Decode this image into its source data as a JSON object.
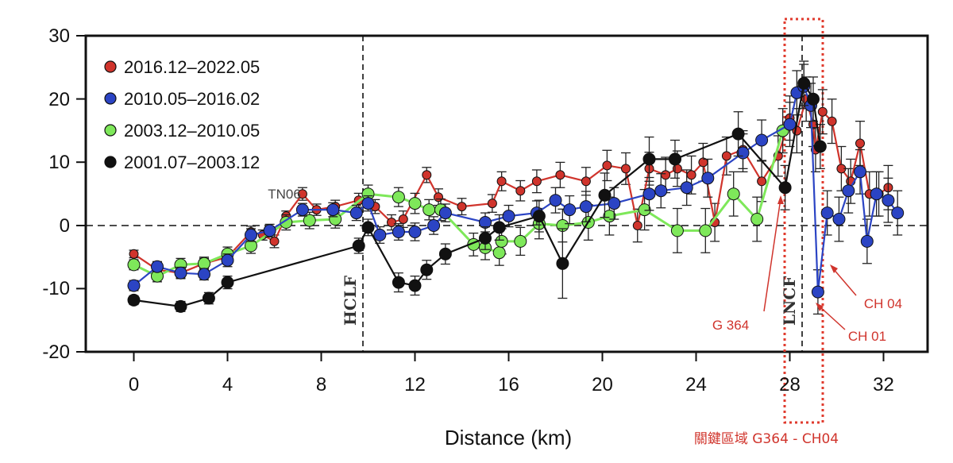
{
  "chart_data": {
    "type": "line",
    "xlabel": "Distance (km)",
    "ylabel": "",
    "xlim": [
      -1.5,
      34.5
    ],
    "ylim": [
      -20,
      30
    ],
    "xticks": [
      "0",
      "4",
      "8",
      "12",
      "16",
      "20",
      "24",
      "28",
      "32"
    ],
    "yticks": [
      "30",
      "20",
      "10",
      "0",
      "-10",
      "-20"
    ],
    "legend_position": "top-left",
    "series": [
      {
        "name": "2016.12–2022.05",
        "color": "#d0342c",
        "points": [
          [
            0,
            -4.5,
            0.6
          ],
          [
            1,
            -7.0,
            0.7
          ],
          [
            2,
            -7.5,
            0.8
          ],
          [
            3,
            -6.0,
            0.8
          ],
          [
            4,
            -5.0,
            0.9
          ],
          [
            5,
            -1.0,
            0.9
          ],
          [
            5.5,
            -1.5,
            0.8
          ],
          [
            6,
            -2.5,
            1.0
          ],
          [
            6.5,
            1.5,
            0.8
          ],
          [
            7.2,
            5.0,
            1.0
          ],
          [
            7.8,
            2.5,
            0.9
          ],
          [
            8.6,
            3.0,
            1.0
          ],
          [
            9.6,
            4.0,
            1.1
          ],
          [
            10.3,
            3.0,
            1.1
          ],
          [
            11,
            0.5,
            1.2
          ],
          [
            11.5,
            1.0,
            1.3
          ],
          [
            12.5,
            8.0,
            1.2
          ],
          [
            13,
            4.5,
            1.3
          ],
          [
            14,
            3.0,
            1.3
          ],
          [
            15.3,
            3.5,
            1.4
          ],
          [
            15.7,
            7.0,
            1.5
          ],
          [
            16.5,
            5.5,
            1.6
          ],
          [
            17.2,
            7.0,
            1.8
          ],
          [
            18.2,
            8.0,
            2.0
          ],
          [
            19.3,
            7.0,
            2.2
          ],
          [
            20.2,
            9.5,
            2.4
          ],
          [
            21,
            9.0,
            2.5
          ],
          [
            21.5,
            0.0,
            2.6
          ],
          [
            22,
            9.0,
            2.6
          ],
          [
            22.7,
            8.0,
            2.8
          ],
          [
            23.2,
            9.0,
            2.8
          ],
          [
            23.8,
            8.0,
            3.0
          ],
          [
            24.3,
            10.0,
            3.0
          ],
          [
            24.8,
            0.5,
            3.0
          ],
          [
            25.3,
            11.0,
            3.0
          ],
          [
            26,
            12.0,
            3.0
          ],
          [
            26.8,
            7.0,
            3.2
          ],
          [
            27.5,
            11.0,
            3.2
          ],
          [
            28,
            17.0,
            3.5
          ],
          [
            28.3,
            15.0,
            3.5
          ],
          [
            28.7,
            20.0,
            3.5
          ],
          [
            29,
            16.0,
            3.5
          ],
          [
            29.1,
            12.0,
            3.5
          ],
          [
            29.4,
            18.0,
            3.5
          ],
          [
            29.8,
            16.5,
            3.5
          ],
          [
            30.2,
            9.0,
            3.5
          ],
          [
            30.6,
            7.0,
            3.5
          ],
          [
            31,
            13.0,
            3.5
          ],
          [
            31.4,
            5.0,
            3.5
          ],
          [
            31.8,
            5.0,
            3.5
          ],
          [
            32.2,
            6.0,
            3.5
          ]
        ]
      },
      {
        "name": "2010.05–2016.02",
        "color": "#2b44c4",
        "points": [
          [
            0,
            -9.5,
            0.8
          ],
          [
            1,
            -6.5,
            0.8
          ],
          [
            2,
            -7.5,
            0.9
          ],
          [
            3,
            -7.7,
            0.9
          ],
          [
            4,
            -5.5,
            1.0
          ],
          [
            5,
            -1.5,
            1.0
          ],
          [
            5.8,
            -0.8,
            1.0
          ],
          [
            7.2,
            2.5,
            1.0
          ],
          [
            8.5,
            2.5,
            1.1
          ],
          [
            9.5,
            2.0,
            1.2
          ],
          [
            10,
            3.5,
            1.2
          ],
          [
            10.5,
            -1.5,
            1.3
          ],
          [
            11.3,
            -1.0,
            1.3
          ],
          [
            12,
            -1.0,
            1.4
          ],
          [
            12.8,
            0.0,
            1.4
          ],
          [
            13.3,
            2.0,
            1.4
          ],
          [
            15,
            0.5,
            1.5
          ],
          [
            16,
            1.5,
            1.7
          ],
          [
            17.2,
            2.0,
            1.9
          ],
          [
            18,
            4.0,
            2.0
          ],
          [
            18.6,
            2.5,
            2.2
          ],
          [
            19.3,
            3.0,
            2.4
          ],
          [
            20.5,
            3.5,
            2.5
          ],
          [
            22,
            5.0,
            2.6
          ],
          [
            22.5,
            5.5,
            2.7
          ],
          [
            23.6,
            6.0,
            2.8
          ],
          [
            24.5,
            7.5,
            3.0
          ],
          [
            26,
            11.5,
            3.0
          ],
          [
            26.8,
            13.5,
            3.2
          ],
          [
            28,
            16.0,
            3.5
          ],
          [
            28.3,
            21.0,
            3.5
          ],
          [
            28.6,
            22.0,
            3.5
          ],
          [
            28.9,
            19.0,
            3.5
          ],
          [
            29.2,
            -10.5,
            3.5
          ],
          [
            29.6,
            2.0,
            3.5
          ],
          [
            30.1,
            1.0,
            3.5
          ],
          [
            30.5,
            5.5,
            3.5
          ],
          [
            31,
            8.5,
            3.5
          ],
          [
            31.3,
            -2.5,
            3.5
          ],
          [
            31.7,
            5.0,
            3.5
          ],
          [
            32.2,
            4.0,
            3.5
          ],
          [
            32.6,
            2.0,
            3.5
          ]
        ]
      },
      {
        "name": "2003.12–2010.05",
        "color": "#7ee85a",
        "points": [
          [
            0,
            -6.2,
            0.8
          ],
          [
            1,
            -8.0,
            0.9
          ],
          [
            2,
            -6.2,
            1.0
          ],
          [
            3,
            -6.0,
            1.0
          ],
          [
            4,
            -4.5,
            1.1
          ],
          [
            5,
            -3.2,
            1.2
          ],
          [
            6.5,
            0.5,
            1.2
          ],
          [
            7.5,
            0.8,
            1.3
          ],
          [
            8.6,
            1.0,
            1.4
          ],
          [
            10,
            5.0,
            1.4
          ],
          [
            11.3,
            4.5,
            1.5
          ],
          [
            12,
            3.5,
            1.6
          ],
          [
            12.6,
            2.5,
            1.6
          ],
          [
            13.1,
            2.5,
            1.7
          ],
          [
            14.5,
            -3.0,
            1.8
          ],
          [
            15,
            -3.5,
            1.9
          ],
          [
            15.6,
            -4.3,
            2.0
          ],
          [
            15.7,
            -2.5,
            2.0
          ],
          [
            16.5,
            -2.5,
            2.2
          ],
          [
            17.3,
            0.3,
            2.4
          ],
          [
            18.3,
            0.0,
            2.6
          ],
          [
            19.4,
            0.5,
            2.8
          ],
          [
            20.3,
            1.5,
            3.0
          ],
          [
            21.8,
            2.5,
            3.2
          ],
          [
            23.2,
            -0.8,
            3.5
          ],
          [
            24.4,
            -0.8,
            3.5
          ],
          [
            25.6,
            5.0,
            3.5
          ],
          [
            26.6,
            1.0,
            3.5
          ],
          [
            27.7,
            15.0,
            3.5
          ]
        ]
      },
      {
        "name": "2001.07–2003.12",
        "color": "#111111",
        "points": [
          [
            0,
            -11.8,
            0.7
          ],
          [
            2,
            -12.8,
            0.8
          ],
          [
            3.2,
            -11.5,
            0.9
          ],
          [
            4,
            -9.0,
            1.0
          ],
          [
            9.6,
            -3.2,
            1.2
          ],
          [
            10,
            -0.3,
            1.3
          ],
          [
            11.3,
            -9.0,
            1.5
          ],
          [
            12,
            -9.5,
            1.5
          ],
          [
            12.5,
            -7.0,
            1.5
          ],
          [
            13.3,
            -4.5,
            1.6
          ],
          [
            15,
            -2.0,
            1.8
          ],
          [
            15.6,
            -0.3,
            2.0
          ],
          [
            17.3,
            1.5,
            2.5
          ],
          [
            18.3,
            -6.0,
            5.5
          ],
          [
            20.1,
            4.8,
            3.5
          ],
          [
            22,
            10.5,
            3.5
          ],
          [
            23.1,
            10.5,
            3.0
          ],
          [
            25.8,
            14.5,
            3.5
          ],
          [
            27.8,
            6.0,
            3.5
          ],
          [
            28.6,
            22.5,
            3.5
          ],
          [
            29,
            20.0,
            3.5
          ],
          [
            29.3,
            12.5,
            3.5
          ]
        ]
      }
    ],
    "annotations": {
      "hclf_label": "HCLF",
      "lncf_label": "LNCF",
      "tn06_label": "TN06",
      "g364_label": "G 364",
      "ch04_label": "CH 04",
      "ch01_label": "CH 01",
      "key_region_label": "關鍵區域  G364 - CH04"
    }
  },
  "colors": {
    "red": "#d0342c",
    "blue": "#2b44c4",
    "green": "#7ee85a",
    "black": "#111111",
    "highlight": "#e03b2e"
  }
}
